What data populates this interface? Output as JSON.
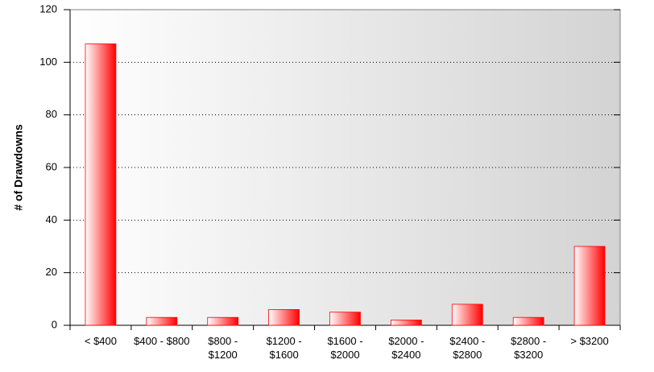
{
  "chart_data": {
    "type": "bar",
    "y_label": "# of Drawdowns",
    "categories": [
      "< $400",
      "$400 - $800",
      "$800 - $1200",
      "$1200 - $1600",
      "$1600 - $2000",
      "$2000 - $2400",
      "$2400 - $2800",
      "$2800 - $3200",
      "> $3200"
    ],
    "values": [
      107,
      3,
      3,
      6,
      5,
      2,
      8,
      3,
      30
    ],
    "color": "#ff0000",
    "ylim": [
      0,
      120
    ],
    "yticks": [
      0,
      20,
      40,
      60,
      80,
      100,
      120
    ],
    "grid": true
  }
}
